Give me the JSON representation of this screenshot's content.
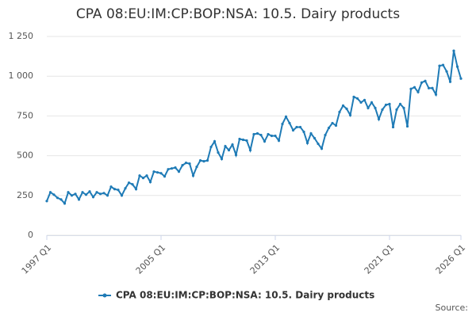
{
  "chart_data": {
    "type": "line",
    "title": "CPA 08:EU:IM:CP:BOP:NSA: 10.5. Dairy products",
    "source": "Source:",
    "categories": [
      "1997 Q1",
      null,
      null,
      null,
      null,
      null,
      null,
      null,
      null,
      null,
      null,
      null,
      null,
      null,
      null,
      null,
      null,
      null,
      null,
      null,
      null,
      null,
      null,
      null,
      null,
      null,
      null,
      null,
      null,
      null,
      null,
      null,
      "2005 Q1",
      null,
      null,
      null,
      null,
      null,
      null,
      null,
      null,
      null,
      null,
      null,
      null,
      null,
      null,
      null,
      null,
      null,
      null,
      null,
      null,
      null,
      null,
      null,
      null,
      null,
      null,
      null,
      null,
      null,
      null,
      null,
      "2013 Q1",
      null,
      null,
      null,
      null,
      null,
      null,
      null,
      null,
      null,
      null,
      null,
      null,
      null,
      null,
      null,
      null,
      null,
      null,
      null,
      null,
      null,
      null,
      null,
      null,
      null,
      null,
      null,
      null,
      null,
      null,
      null,
      "2021 Q1",
      null,
      null,
      null,
      null,
      null,
      null,
      null,
      null,
      null,
      null,
      null,
      null,
      null,
      null,
      null,
      null,
      null,
      null,
      null,
      "2026 Q1"
    ],
    "series": [
      {
        "name": "CPA 08:EU:IM:CP:BOP:NSA: 10.5. Dairy products",
        "color": "#1f7bb6",
        "values": [
          215,
          270,
          255,
          235,
          225,
          200,
          270,
          250,
          260,
          225,
          270,
          255,
          275,
          240,
          270,
          260,
          265,
          250,
          305,
          290,
          285,
          250,
          295,
          330,
          320,
          290,
          375,
          360,
          375,
          335,
          400,
          395,
          390,
          370,
          415,
          420,
          425,
          400,
          440,
          455,
          450,
          375,
          430,
          470,
          465,
          470,
          555,
          590,
          520,
          480,
          560,
          535,
          570,
          505,
          605,
          600,
          595,
          535,
          635,
          640,
          630,
          590,
          635,
          625,
          625,
          595,
          700,
          745,
          705,
          660,
          680,
          680,
          650,
          580,
          640,
          610,
          575,
          545,
          630,
          675,
          705,
          690,
          775,
          815,
          795,
          755,
          870,
          860,
          835,
          850,
          800,
          835,
          800,
          730,
          790,
          820,
          825,
          680,
          790,
          825,
          800,
          685,
          920,
          930,
          900,
          960,
          970,
          925,
          925,
          885,
          1065,
          1070,
          1030,
          965,
          1160,
          1060,
          985
        ]
      }
    ],
    "ylim": [
      0,
      1250
    ],
    "yticks": [
      0,
      250,
      500,
      750,
      {
        "value": 1000,
        "label": "1 000"
      },
      {
        "value": 1250,
        "label": "1 250"
      }
    ],
    "grid": true
  }
}
